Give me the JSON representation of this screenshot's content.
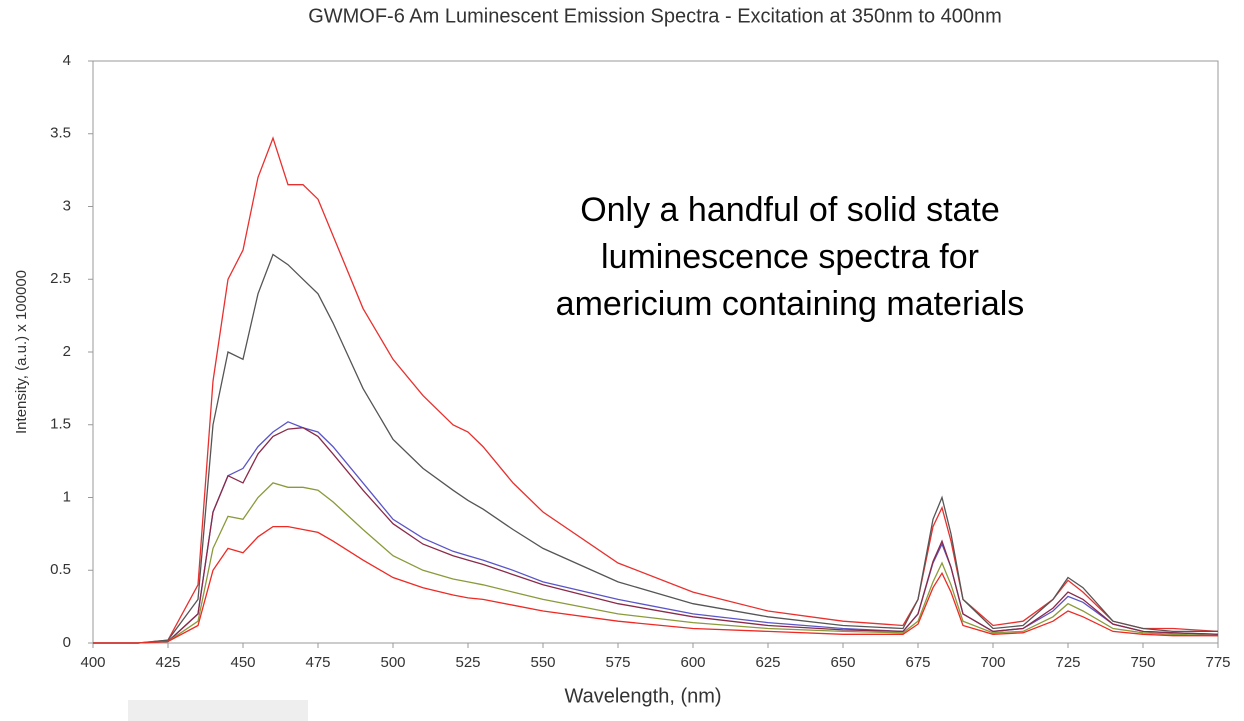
{
  "chart_data": {
    "type": "line",
    "title": "GWMOF-6 Am Luminescent Emission Spectra  - Excitation at 350nm to 400nm",
    "xlabel": "Wavelength, (nm)",
    "ylabel": "Intensity, (a.u.) x 100000",
    "annotation": [
      "Only a handful of solid state",
      "luminescence spectra for",
      "americium containing materials"
    ],
    "x": [
      400,
      415,
      425,
      435,
      440,
      445,
      450,
      455,
      460,
      465,
      470,
      475,
      480,
      490,
      500,
      510,
      520,
      525,
      530,
      540,
      550,
      575,
      600,
      625,
      650,
      670,
      675,
      680,
      683,
      686,
      690,
      700,
      710,
      720,
      725,
      730,
      740,
      750,
      760,
      775
    ],
    "xlim": [
      400,
      775
    ],
    "xticks": [
      400,
      425,
      450,
      475,
      500,
      525,
      550,
      575,
      600,
      625,
      650,
      675,
      700,
      725,
      750,
      775
    ],
    "ylim": [
      0,
      4
    ],
    "yticks": [
      0,
      0.5,
      1,
      1.5,
      2,
      2.5,
      3,
      3.5,
      4
    ],
    "grid": false,
    "series": [
      {
        "color": "#e8302e",
        "values": [
          0,
          0,
          0.02,
          0.4,
          1.8,
          2.5,
          2.7,
          3.2,
          3.47,
          3.15,
          3.15,
          3.05,
          2.8,
          2.3,
          1.95,
          1.7,
          1.5,
          1.45,
          1.35,
          1.1,
          0.9,
          0.55,
          0.35,
          0.22,
          0.15,
          0.12,
          0.3,
          0.8,
          0.93,
          0.7,
          0.3,
          0.12,
          0.15,
          0.3,
          0.43,
          0.35,
          0.15,
          0.1,
          0.1,
          0.08
        ]
      },
      {
        "color": "#555555",
        "values": [
          0,
          0,
          0.02,
          0.3,
          1.5,
          2.0,
          1.95,
          2.4,
          2.67,
          2.6,
          2.5,
          2.4,
          2.2,
          1.75,
          1.4,
          1.2,
          1.05,
          0.98,
          0.92,
          0.78,
          0.65,
          0.42,
          0.27,
          0.18,
          0.12,
          0.1,
          0.3,
          0.85,
          1.0,
          0.75,
          0.3,
          0.1,
          0.12,
          0.3,
          0.45,
          0.38,
          0.15,
          0.1,
          0.08,
          0.08
        ]
      },
      {
        "color": "#5a55c8",
        "values": [
          0,
          0,
          0.01,
          0.2,
          0.9,
          1.15,
          1.2,
          1.35,
          1.45,
          1.52,
          1.48,
          1.45,
          1.35,
          1.1,
          0.85,
          0.72,
          0.63,
          0.6,
          0.57,
          0.5,
          0.42,
          0.3,
          0.2,
          0.14,
          0.1,
          0.08,
          0.2,
          0.55,
          0.68,
          0.52,
          0.2,
          0.08,
          0.1,
          0.22,
          0.32,
          0.28,
          0.13,
          0.08,
          0.07,
          0.06
        ]
      },
      {
        "color": "#8a2a48",
        "values": [
          0,
          0,
          0.01,
          0.2,
          0.9,
          1.15,
          1.1,
          1.3,
          1.42,
          1.47,
          1.48,
          1.42,
          1.3,
          1.05,
          0.82,
          0.68,
          0.6,
          0.57,
          0.54,
          0.47,
          0.4,
          0.27,
          0.18,
          0.12,
          0.09,
          0.08,
          0.2,
          0.56,
          0.7,
          0.52,
          0.2,
          0.08,
          0.1,
          0.24,
          0.35,
          0.3,
          0.13,
          0.08,
          0.07,
          0.06
        ]
      },
      {
        "color": "#8a9a3a",
        "values": [
          0,
          0,
          0.01,
          0.15,
          0.65,
          0.87,
          0.85,
          1.0,
          1.1,
          1.07,
          1.07,
          1.05,
          0.97,
          0.78,
          0.6,
          0.5,
          0.44,
          0.42,
          0.4,
          0.35,
          0.3,
          0.2,
          0.14,
          0.1,
          0.08,
          0.07,
          0.15,
          0.42,
          0.55,
          0.4,
          0.15,
          0.07,
          0.08,
          0.18,
          0.27,
          0.22,
          0.1,
          0.07,
          0.06,
          0.05
        ]
      },
      {
        "color": "#ee2a24",
        "values": [
          0,
          0,
          0.01,
          0.12,
          0.5,
          0.65,
          0.62,
          0.73,
          0.8,
          0.8,
          0.78,
          0.76,
          0.7,
          0.57,
          0.45,
          0.38,
          0.33,
          0.31,
          0.3,
          0.26,
          0.22,
          0.15,
          0.1,
          0.08,
          0.06,
          0.06,
          0.13,
          0.38,
          0.48,
          0.35,
          0.12,
          0.06,
          0.07,
          0.15,
          0.22,
          0.18,
          0.08,
          0.06,
          0.05,
          0.05
        ]
      }
    ]
  }
}
